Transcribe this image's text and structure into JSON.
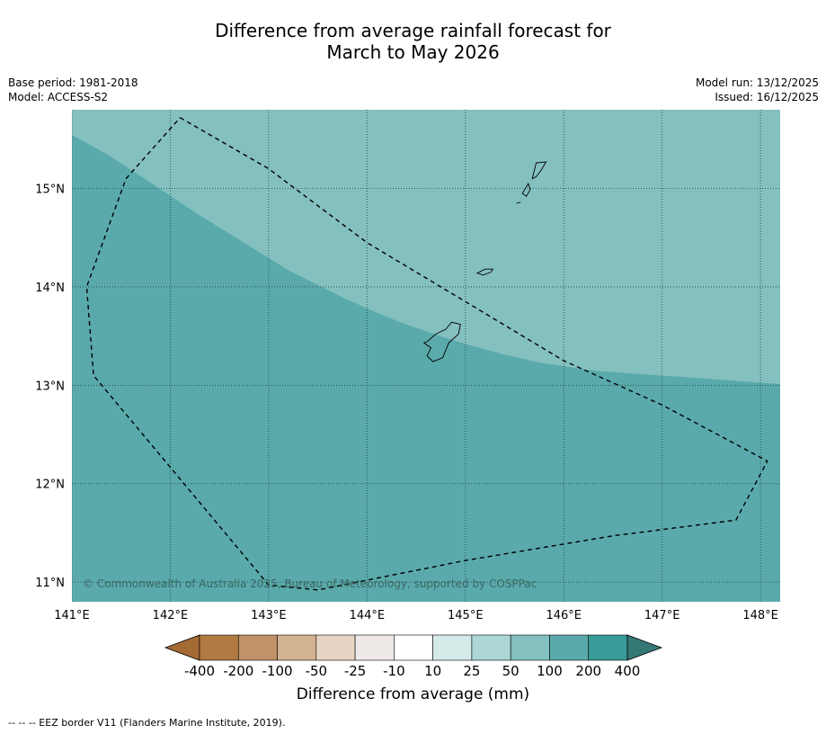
{
  "title": {
    "line1": "Difference from average rainfall forecast for",
    "line2": "March to May 2026"
  },
  "meta": {
    "base_period": "Base period: 1981-2018",
    "model": "Model: ACCESS-S2",
    "model_run": "Model run: 13/12/2025",
    "issued": "Issued: 16/12/2025"
  },
  "map": {
    "copyright": "© Commonwealth of Australia 2025, Bureau of Meteorology, supported by COSPPac",
    "lon_labels": [
      "141°E",
      "142°E",
      "143°E",
      "144°E",
      "145°E",
      "146°E",
      "147°E",
      "148°E"
    ],
    "lat_labels": [
      "15°N",
      "14°N",
      "13°N",
      "12°N",
      "11°N"
    ],
    "lon_values": [
      141,
      142,
      143,
      144,
      145,
      146,
      147,
      148
    ],
    "lat_values": [
      15,
      14,
      13,
      12,
      11
    ],
    "lon_range": [
      141,
      148.2
    ],
    "lat_range": [
      10.8,
      15.8
    ],
    "regions": [
      {
        "category": "100 to 200 mm",
        "color": "#5aaaab"
      },
      {
        "category": "50 to 100 mm",
        "color": "#84c0bf"
      }
    ],
    "eez_boundary": [
      [
        142.1,
        15.72
      ],
      [
        143.0,
        15.2
      ],
      [
        144.0,
        14.45
      ],
      [
        145.0,
        13.85
      ],
      [
        146.0,
        13.25
      ],
      [
        147.0,
        12.8
      ],
      [
        148.07,
        12.23
      ],
      [
        147.75,
        11.63
      ],
      [
        146.5,
        11.47
      ],
      [
        145.0,
        11.22
      ],
      [
        143.5,
        10.92
      ],
      [
        143.0,
        10.97
      ],
      [
        141.22,
        13.1
      ],
      [
        141.15,
        14.0
      ],
      [
        141.55,
        15.1
      ],
      [
        142.1,
        15.72
      ]
    ],
    "islands": [
      {
        "name": "Guam",
        "outline": [
          [
            144.62,
            13.45
          ],
          [
            144.7,
            13.52
          ],
          [
            144.8,
            13.57
          ],
          [
            144.86,
            13.64
          ],
          [
            144.95,
            13.62
          ],
          [
            144.93,
            13.52
          ],
          [
            144.83,
            13.43
          ],
          [
            144.77,
            13.28
          ],
          [
            144.67,
            13.24
          ],
          [
            144.61,
            13.3
          ],
          [
            144.65,
            13.38
          ],
          [
            144.58,
            13.43
          ]
        ]
      },
      {
        "name": "Rota",
        "outline": [
          [
            145.12,
            14.14
          ],
          [
            145.2,
            14.18
          ],
          [
            145.28,
            14.18
          ],
          [
            145.26,
            14.15
          ],
          [
            145.18,
            14.12
          ]
        ]
      },
      {
        "name": "Tinian",
        "outline": [
          [
            145.58,
            14.95
          ],
          [
            145.64,
            15.05
          ],
          [
            145.66,
            14.99
          ],
          [
            145.62,
            14.92
          ]
        ]
      },
      {
        "name": "Saipan",
        "outline": [
          [
            145.68,
            15.1
          ],
          [
            145.72,
            15.26
          ],
          [
            145.82,
            15.27
          ],
          [
            145.76,
            15.17
          ],
          [
            145.72,
            15.12
          ]
        ]
      },
      {
        "name": "Aguijan",
        "outline": [
          [
            145.52,
            14.85
          ],
          [
            145.56,
            14.86
          ]
        ]
      }
    ]
  },
  "colorbar": {
    "colors": [
      "#a56b34",
      "#b07a42",
      "#c09369",
      "#d4b393",
      "#e8d4c2",
      "#eee9e6",
      "#ffffff",
      "#d4ebe9",
      "#acd7d6",
      "#84c0bf",
      "#5aaaab",
      "#389b97",
      "#357876"
    ],
    "labels": [
      "-400",
      "-200",
      "-100",
      "-50",
      "-25",
      "-10",
      "10",
      "25",
      "50",
      "100",
      "200",
      "400"
    ],
    "title": "Difference from average (mm)"
  },
  "footnote": "--  --  -- EEZ border V11 (Flanders Marine Institute, 2019)."
}
